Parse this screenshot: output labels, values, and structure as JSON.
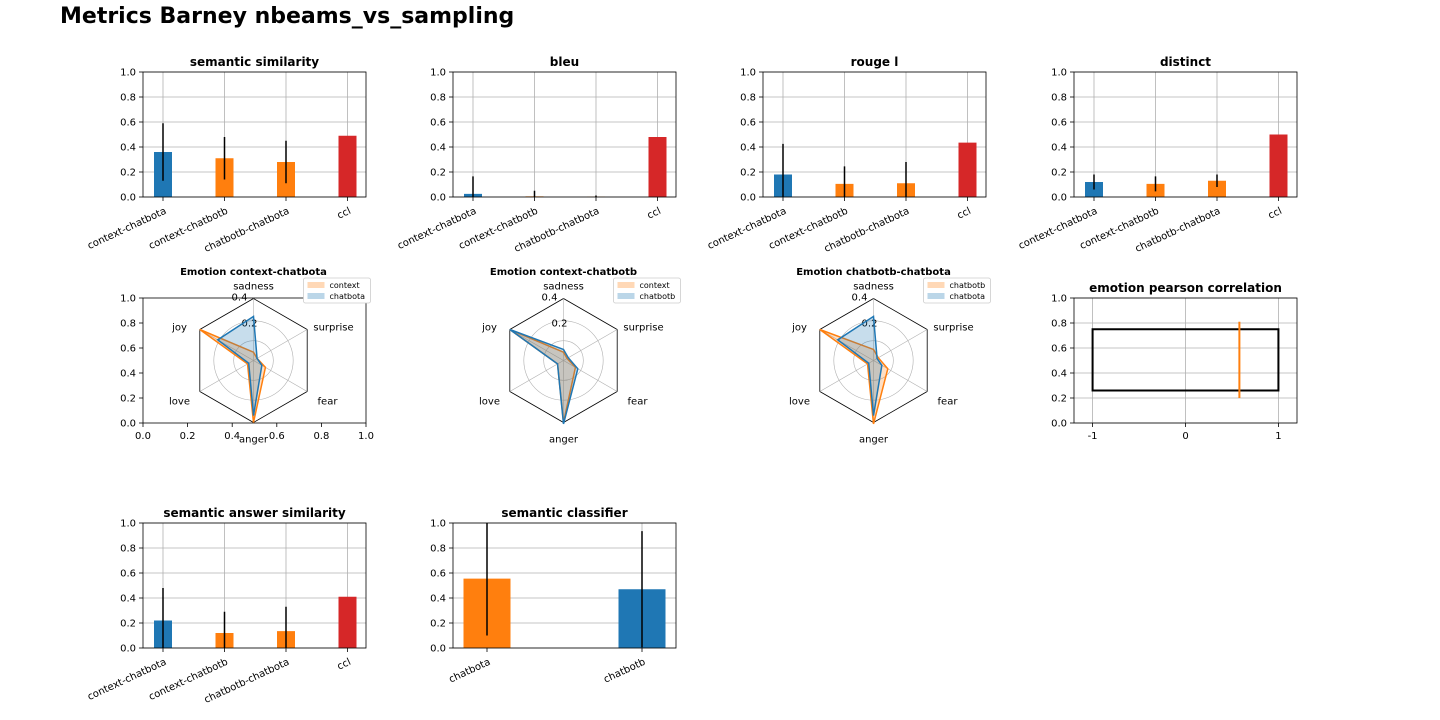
{
  "figure": {
    "title": "Metrics Barney nbeams_vs_sampling"
  },
  "colors": {
    "blue": "#1f77b4",
    "orange": "#ff7f0e",
    "red": "#d62728",
    "grid": "#b0b0b0",
    "err": "#000000"
  },
  "chart_data": [
    {
      "id": "semantic-similarity",
      "type": "bar",
      "title": "semantic similarity",
      "categories": [
        "context-chatbota",
        "context-chatbotb",
        "chatbotb-chatbota",
        "ccl"
      ],
      "values": [
        0.36,
        0.31,
        0.28,
        0.49
      ],
      "errors": [
        0.23,
        0.17,
        0.17,
        0
      ],
      "colors": [
        "blue",
        "orange",
        "orange",
        "red"
      ],
      "ylim": [
        0,
        1.0
      ],
      "yticks": [
        "0.0",
        "0.2",
        "0.4",
        "0.6",
        "0.8",
        "1.0"
      ],
      "grid": true
    },
    {
      "id": "bleu",
      "type": "bar",
      "title": "bleu",
      "categories": [
        "context-chatbota",
        "context-chatbotb",
        "chatbotb-chatbota",
        "ccl"
      ],
      "values": [
        0.025,
        0.005,
        0.002,
        0.48
      ],
      "errors": [
        0.14,
        0.045,
        0.01,
        0
      ],
      "colors": [
        "blue",
        "orange",
        "orange",
        "red"
      ],
      "ylim": [
        0,
        1.0
      ],
      "yticks": [
        "0.0",
        "0.2",
        "0.4",
        "0.6",
        "0.8",
        "1.0"
      ],
      "grid": true
    },
    {
      "id": "rouge-l",
      "type": "bar",
      "title": "rouge l",
      "categories": [
        "context-chatbota",
        "context-chatbotb",
        "chatbotb-chatbota",
        "ccl"
      ],
      "values": [
        0.18,
        0.105,
        0.11,
        0.435
      ],
      "errors": [
        0.245,
        0.14,
        0.17,
        0
      ],
      "colors": [
        "blue",
        "orange",
        "orange",
        "red"
      ],
      "ylim": [
        0,
        1.0
      ],
      "yticks": [
        "0.0",
        "0.2",
        "0.4",
        "0.6",
        "0.8",
        "1.0"
      ],
      "grid": true
    },
    {
      "id": "distinct",
      "type": "bar",
      "title": "distinct",
      "categories": [
        "context-chatbota",
        "context-chatbotb",
        "chatbotb-chatbota",
        "ccl"
      ],
      "values": [
        0.12,
        0.105,
        0.13,
        0.5
      ],
      "errors": [
        0.06,
        0.06,
        0.05,
        0
      ],
      "colors": [
        "blue",
        "orange",
        "orange",
        "red"
      ],
      "ylim": [
        0,
        1.0
      ],
      "yticks": [
        "0.0",
        "0.2",
        "0.4",
        "0.6",
        "0.8",
        "1.0"
      ],
      "grid": true
    },
    {
      "id": "emotion-context-chatbota",
      "type": "radar",
      "title": "Emotion context-chatbota",
      "axes": [
        "sadness",
        "surprise",
        "fear",
        "anger",
        "love",
        "joy"
      ],
      "rticks": [
        "0.2",
        "0.4"
      ],
      "rmax": 0.45,
      "series": [
        {
          "name": "context",
          "color": "orange",
          "values": [
            0.06,
            0.03,
            0.1,
            0.45,
            0.05,
            0.45
          ]
        },
        {
          "name": "chatbota",
          "color": "blue",
          "values": [
            0.32,
            0.03,
            0.07,
            0.4,
            0.04,
            0.3
          ]
        }
      ],
      "legend": "top-right",
      "frame": {
        "xticks": [
          "0.0",
          "0.2",
          "0.4",
          "0.6",
          "0.8",
          "1.0"
        ],
        "yticks": [
          "0.0",
          "0.2",
          "0.4",
          "0.6",
          "0.8",
          "1.0"
        ]
      }
    },
    {
      "id": "emotion-context-chatbotb",
      "type": "radar",
      "title": "Emotion context-chatbotb",
      "axes": [
        "sadness",
        "surprise",
        "fear",
        "anger",
        "love",
        "joy"
      ],
      "rticks": [
        "0.2",
        "0.4"
      ],
      "rmax": 0.45,
      "series": [
        {
          "name": "context",
          "color": "orange",
          "values": [
            0.06,
            0.03,
            0.1,
            0.45,
            0.05,
            0.45
          ]
        },
        {
          "name": "chatbotb",
          "color": "blue",
          "values": [
            0.08,
            0.04,
            0.12,
            0.46,
            0.05,
            0.45
          ]
        }
      ],
      "legend": "top-right"
    },
    {
      "id": "emotion-chatbotb-chatbota",
      "type": "radar",
      "title": "Emotion chatbotb-chatbota",
      "axes": [
        "sadness",
        "surprise",
        "fear",
        "anger",
        "love",
        "joy"
      ],
      "rticks": [
        "0.2",
        "0.4"
      ],
      "rmax": 0.45,
      "series": [
        {
          "name": "chatbotb",
          "color": "orange",
          "values": [
            0.08,
            0.04,
            0.12,
            0.46,
            0.05,
            0.45
          ]
        },
        {
          "name": "chatbota",
          "color": "blue",
          "values": [
            0.32,
            0.03,
            0.07,
            0.4,
            0.04,
            0.3
          ]
        }
      ],
      "legend": "top-right"
    },
    {
      "id": "emotion-pearson-correlation",
      "type": "box",
      "title": "emotion pearson correlation",
      "xlim": [
        -1.2,
        1.2
      ],
      "xticks": [
        "-1",
        "0",
        "1"
      ],
      "ylim": [
        0,
        1.0
      ],
      "yticks": [
        "0.0",
        "0.2",
        "0.4",
        "0.6",
        "0.8",
        "1.0"
      ],
      "box": {
        "x0": -1,
        "x1": 1,
        "y0": 0.26,
        "y1": 0.75
      },
      "marker": {
        "x": 0.58,
        "y0": 0.2,
        "y1": 0.81,
        "color": "orange"
      },
      "grid": true
    },
    {
      "id": "semantic-answer-similarity",
      "type": "bar",
      "title": "semantic answer similarity",
      "categories": [
        "context-chatbota",
        "context-chatbotb",
        "chatbotb-chatbota",
        "ccl"
      ],
      "values": [
        0.22,
        0.12,
        0.135,
        0.41
      ],
      "errors": [
        0.26,
        0.17,
        0.195,
        0
      ],
      "colors": [
        "blue",
        "orange",
        "orange",
        "red"
      ],
      "ylim": [
        0,
        1.0
      ],
      "yticks": [
        "0.0",
        "0.2",
        "0.4",
        "0.6",
        "0.8",
        "1.0"
      ],
      "grid": true
    },
    {
      "id": "semantic-classifier",
      "type": "bar",
      "title": "semantic classifier",
      "categories": [
        "chatbota",
        "chatbotb"
      ],
      "values": [
        0.555,
        0.47
      ],
      "errors": [
        0.455,
        0.465
      ],
      "colors": [
        "orange",
        "blue"
      ],
      "ylim": [
        0,
        1.0
      ],
      "yticks": [
        "0.0",
        "0.2",
        "0.4",
        "0.6",
        "0.8",
        "1.0"
      ],
      "grid": true
    }
  ]
}
